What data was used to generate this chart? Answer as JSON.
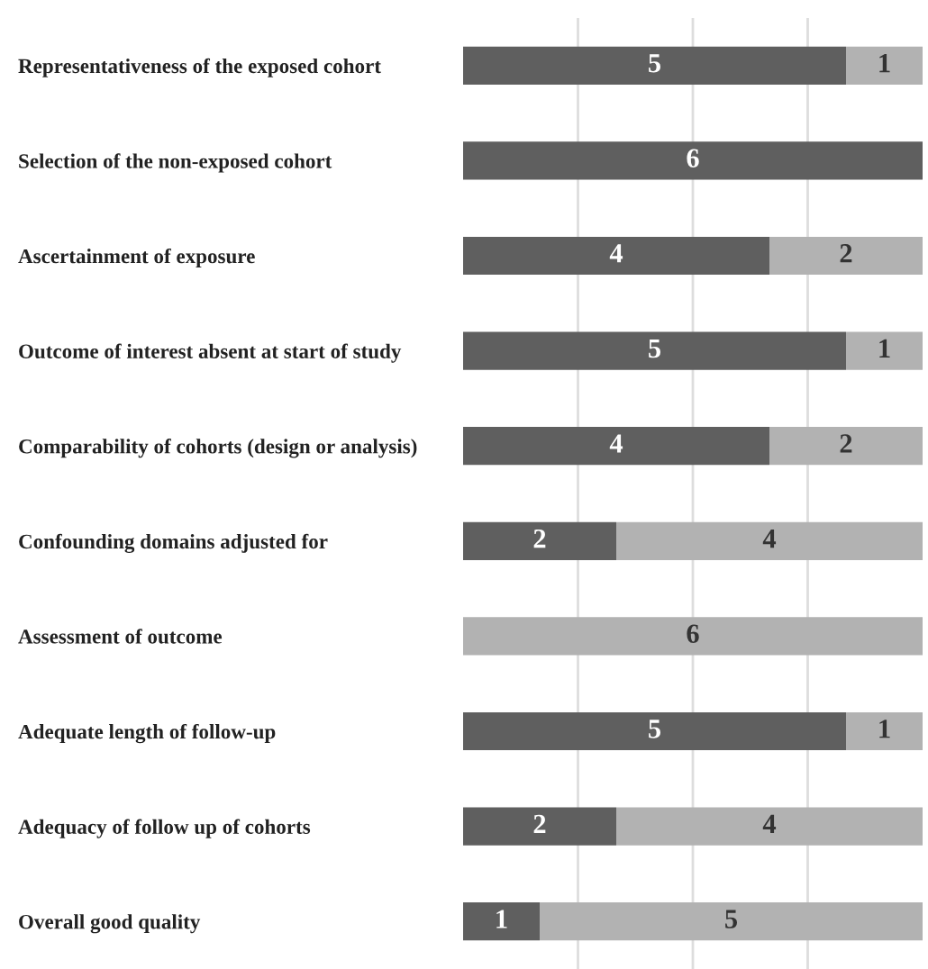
{
  "chart_data": {
    "type": "bar",
    "orientation": "horizontal",
    "stacked": true,
    "categories": [
      "Representativeness of the exposed cohort",
      "Selection of the non-exposed cohort",
      "Ascertainment of exposure",
      "Outcome of interest absent at start of study",
      "Comparability of cohorts (design or analysis)",
      "Confounding domains adjusted for",
      "Assessment of outcome",
      "Adequate length of follow-up",
      "Adequacy of follow up of cohorts",
      "Overall good quality"
    ],
    "series": [
      {
        "color": "#5f5f5f",
        "values": [
          5,
          6,
          4,
          5,
          4,
          2,
          0,
          5,
          2,
          1
        ],
        "value_labels": [
          "5",
          "6",
          "4",
          "5",
          "4",
          "2",
          null,
          "5",
          "2",
          "1"
        ]
      },
      {
        "color": "#b2b2b2",
        "values": [
          1,
          0,
          2,
          1,
          2,
          4,
          6,
          1,
          4,
          5
        ],
        "value_labels": [
          "1",
          null,
          "2",
          "1",
          "2",
          "4",
          "6",
          "1",
          "4",
          "5"
        ]
      }
    ],
    "xlim": [
      0,
      6
    ],
    "xticks": [
      {
        "value": 1.5,
        "label": null
      },
      {
        "value": 3,
        "label": null
      },
      {
        "value": 4.5,
        "label": null
      }
    ],
    "grid": "x",
    "tick_labels": "y"
  }
}
